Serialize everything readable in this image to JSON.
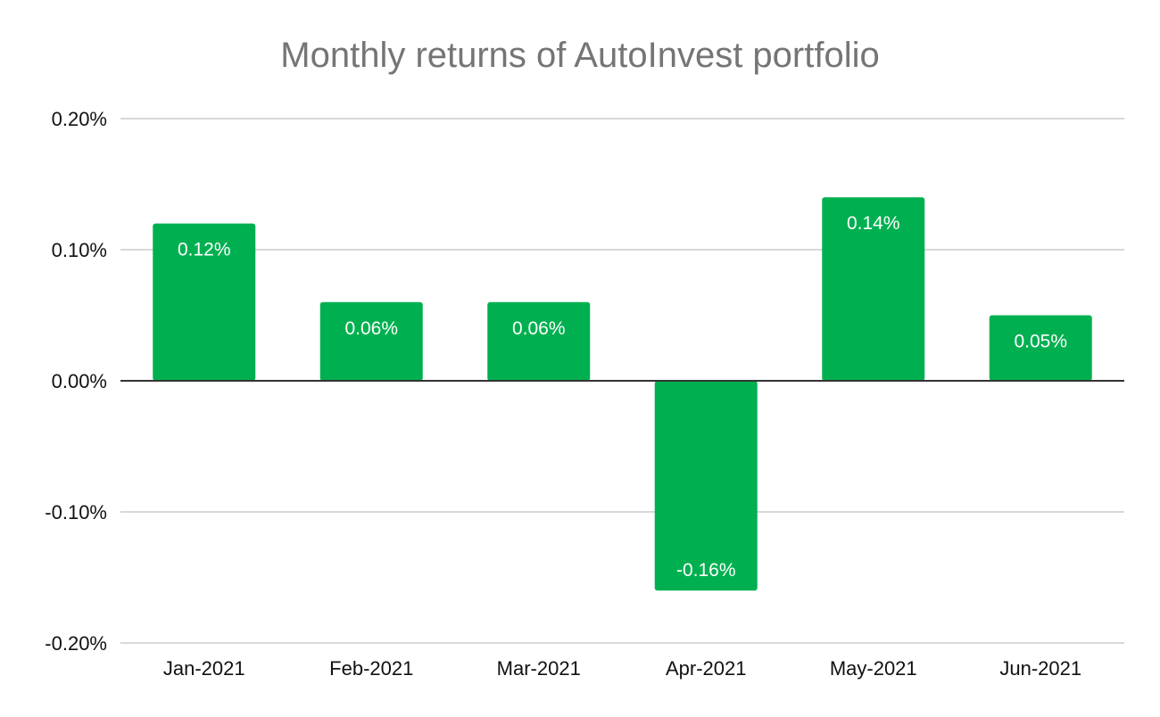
{
  "chart_data": {
    "type": "bar",
    "title": "Monthly returns of AutoInvest portfolio",
    "categories": [
      "Jan-2021",
      "Feb-2021",
      "Mar-2021",
      "Apr-2021",
      "May-2021",
      "Jun-2021"
    ],
    "values": [
      0.12,
      0.06,
      0.06,
      -0.16,
      0.14,
      0.05
    ],
    "data_labels": [
      "0.12%",
      "0.06%",
      "0.06%",
      "-0.16%",
      "0.14%",
      "0.05%"
    ],
    "y_ticks": [
      0.2,
      0.1,
      0.0,
      -0.1,
      -0.2
    ],
    "y_tick_labels": [
      "0.20%",
      "0.10%",
      "0.00%",
      "-0.10%",
      "-0.20%"
    ],
    "ylim": [
      -0.2,
      0.2
    ],
    "y_unit": "%",
    "grid": true,
    "legend": "none",
    "colors": {
      "bar": "#00b050",
      "grid": "#cccccc",
      "zero_line": "#333333",
      "title": "#757575"
    }
  }
}
